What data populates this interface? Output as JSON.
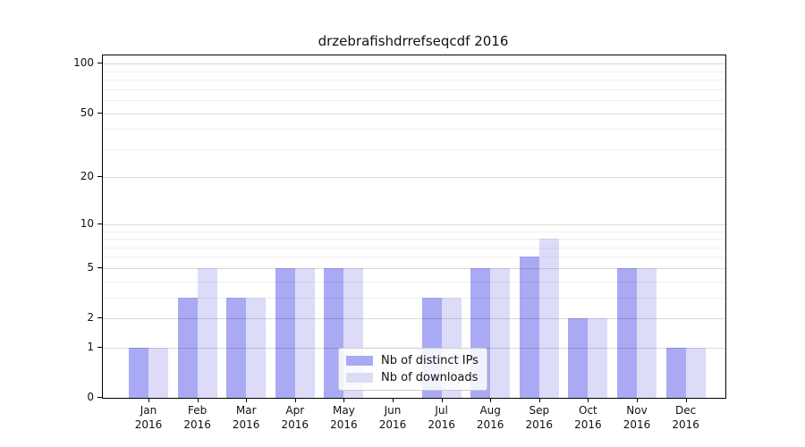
{
  "chart_data": {
    "type": "bar",
    "title": "drzebrafishdrrefseqcdf 2016",
    "categories": [
      "Jan 2016",
      "Feb 2016",
      "Mar 2016",
      "Apr 2016",
      "May 2016",
      "Jun 2016",
      "Jul 2016",
      "Aug 2016",
      "Sep 2016",
      "Oct 2016",
      "Nov 2016",
      "Dec 2016"
    ],
    "series": [
      {
        "name": "Nb of distinct IPs",
        "color": "#a9a9f4",
        "values": [
          1,
          3,
          3,
          5,
          5,
          0,
          3,
          5,
          6,
          2,
          5,
          1
        ]
      },
      {
        "name": "Nb of downloads",
        "color": "#dcdcf8",
        "values": [
          1,
          5,
          3,
          5,
          5,
          0,
          3,
          5,
          8,
          2,
          5,
          1
        ]
      }
    ],
    "xlabel": "",
    "ylabel": "",
    "yticks": [
      0,
      1,
      2,
      5,
      10,
      20,
      50,
      100
    ],
    "minor_gridlines": [
      3,
      4,
      6,
      7,
      8,
      9,
      30,
      40,
      60,
      70,
      80,
      90
    ],
    "yscale": "log10(1+v)",
    "ylim": [
      0,
      112
    ],
    "grid": true,
    "legend_position": "lower center-left inside plot",
    "colors": {
      "axis": "#000000",
      "major_grid": "rgba(0,0,0,0.15)",
      "minor_grid": "rgba(0,0,0,0.06)",
      "text": "#111111",
      "background": "#ffffff"
    }
  }
}
